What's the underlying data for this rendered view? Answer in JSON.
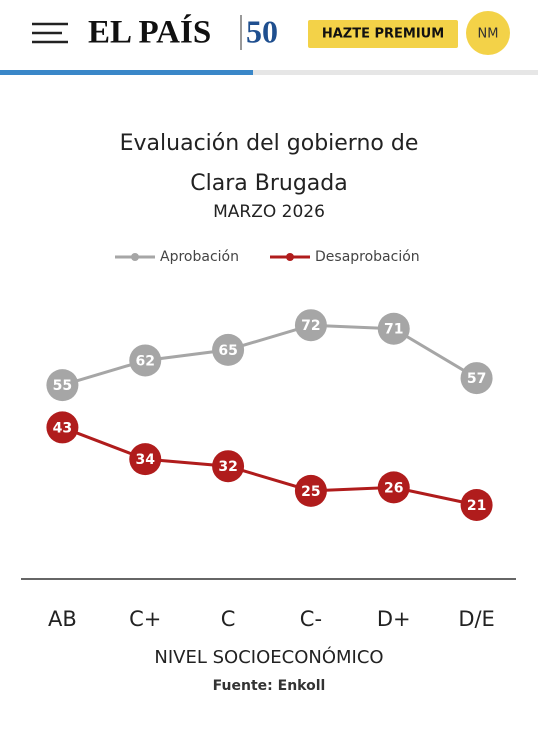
{
  "header": {
    "logo": "EL PAÍS",
    "logo_badge": "50",
    "premium_button": "HAZTE PREMIUM",
    "user_initials": "NM"
  },
  "chart_data": {
    "type": "line",
    "title": "Evaluación del gobierno de Clara Brugada",
    "subtitle": "MARZO 2026",
    "x_label": "NIVEL SOCIOECONÓMICO",
    "source": "Fuente: Enkoll",
    "categories": [
      "AB",
      "C+",
      "C",
      "C-",
      "D+",
      "D/E"
    ],
    "series": [
      {
        "name": "Aprobación",
        "color": "#a6a6a6",
        "values": [
          55,
          62,
          65,
          72,
          71,
          57
        ]
      },
      {
        "name": "Desaprobación",
        "color": "#b01c1c",
        "values": [
          43,
          34,
          32,
          25,
          26,
          21
        ]
      }
    ],
    "ylim": [
      0,
      80
    ],
    "legend": "top"
  }
}
